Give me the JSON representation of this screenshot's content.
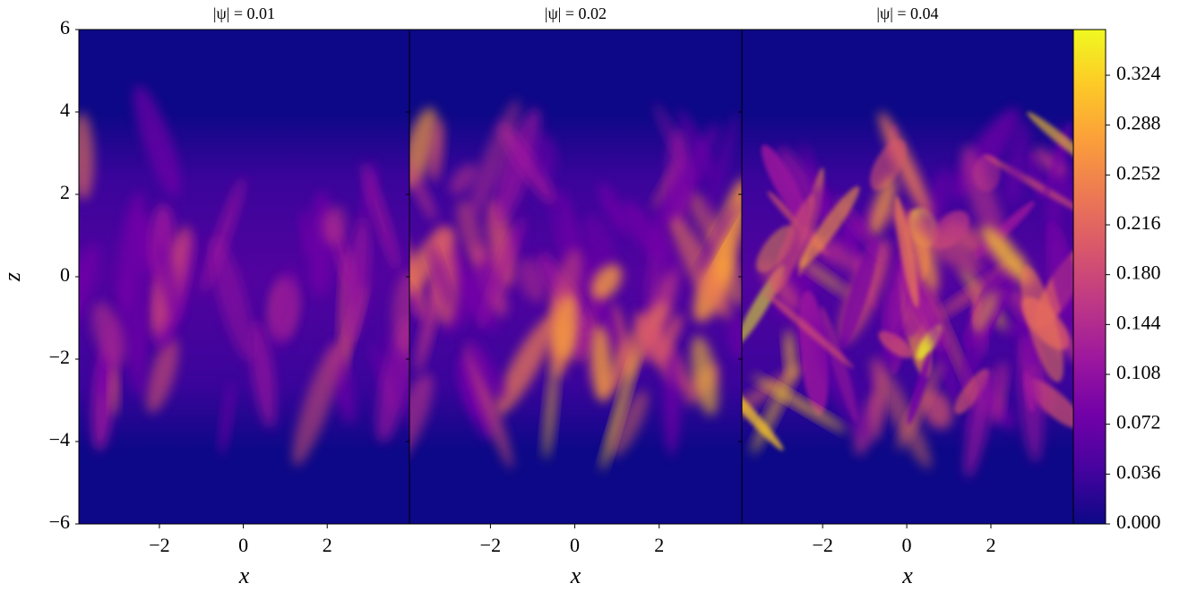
{
  "chart_data": {
    "type": "heatmap",
    "ylabel": "z",
    "ylim": [
      -6,
      6
    ],
    "yticks": [
      {
        "value": -6,
        "label": "−6"
      },
      {
        "value": -4,
        "label": "−4"
      },
      {
        "value": -2,
        "label": "−2"
      },
      0,
      2,
      4,
      6
    ],
    "sharey": true,
    "panels": [
      {
        "title": "|ψ| = 0.01",
        "xlabel": "x",
        "xlim": [
          -3.92,
          3.96
        ],
        "xticks": [
          {
            "value": -2,
            "label": "−2"
          },
          0,
          2
        ]
      },
      {
        "title": "|ψ| = 0.02",
        "xlabel": "x",
        "xlim": [
          -3.92,
          3.96
        ],
        "xticks": [
          {
            "value": -2,
            "label": "−2"
          },
          0,
          2
        ]
      },
      {
        "title": "|ψ| = 0.04",
        "xlabel": "x",
        "xlim": [
          -3.92,
          3.96
        ],
        "xticks": [
          {
            "value": -2,
            "label": "−2"
          },
          0,
          2
        ]
      }
    ],
    "colorbar": {
      "colormap": "plasma",
      "clim": [
        0,
        0.357
      ],
      "ticks": [
        {
          "value": 0,
          "label": "0.000"
        },
        {
          "value": 0.036,
          "label": "0.036"
        },
        {
          "value": 0.072,
          "label": "0.072"
        },
        {
          "value": 0.108,
          "label": "0.108"
        },
        {
          "value": 0.144,
          "label": "0.144"
        },
        {
          "value": 0.18,
          "label": "0.180"
        },
        {
          "value": 0.216,
          "label": "0.216"
        },
        {
          "value": 0.252,
          "label": "0.252"
        },
        {
          "value": 0.288,
          "label": "0.288"
        },
        {
          "value": 0.324,
          "label": "0.324"
        }
      ]
    }
  }
}
